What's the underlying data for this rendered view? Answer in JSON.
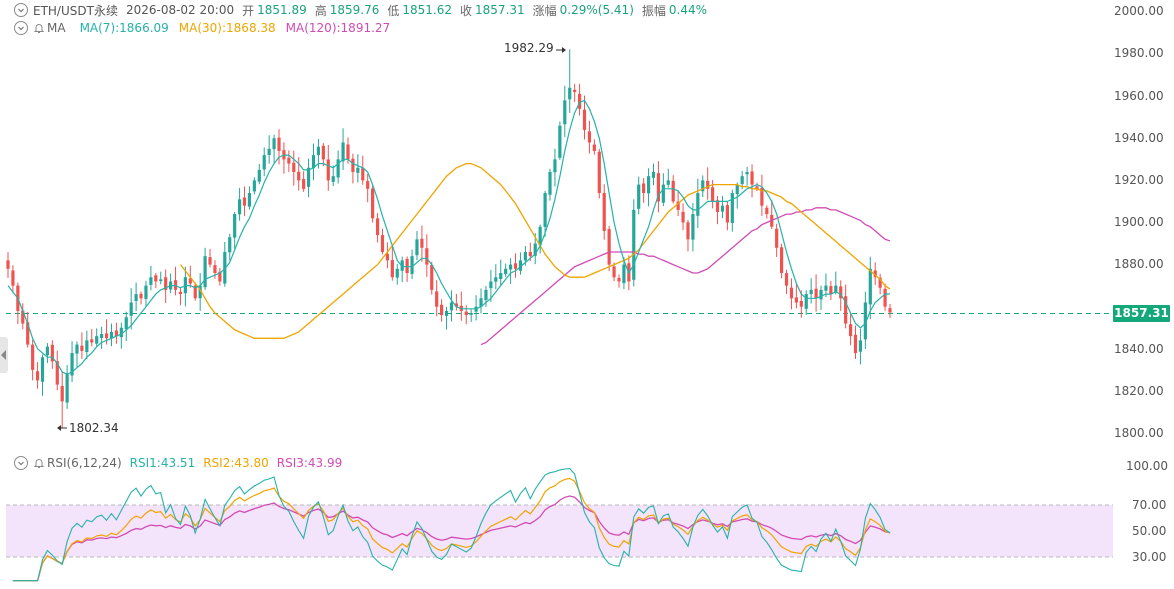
{
  "header": {
    "symbol": "ETH/USDT永续",
    "datetime": "2026-08-02 20:00",
    "open_label": "开",
    "open": "1851.89",
    "high_label": "高",
    "high": "1859.76",
    "low_label": "低",
    "low": "1851.62",
    "close_label": "收",
    "close": "1857.31",
    "change_label": "涨幅",
    "change": "0.29%(5.41)",
    "amplitude_label": "振幅",
    "amplitude": "0.44%"
  },
  "ma": {
    "label": "MA",
    "ma7": "MA(7):1866.09",
    "ma30": "MA(30):1868.38",
    "ma120": "MA(120):1891.27"
  },
  "rsi": {
    "label": "RSI(6,12,24)",
    "rsi1": "RSI1:43.51",
    "rsi2": "RSI2:43.80",
    "rsi3": "RSI3:43.99"
  },
  "price_axis": [
    "2000.00",
    "1980.00",
    "1960.00",
    "1940.00",
    "1920.00",
    "1900.00",
    "1880.00",
    "1860.00",
    "1840.00",
    "1820.00",
    "1800.00"
  ],
  "rsi_axis": [
    "100.00",
    "70.00",
    "50.00",
    "30.00"
  ],
  "current_price": "1857.31",
  "annotations": {
    "high": "1982.29",
    "low": "1802.34"
  },
  "icons": {
    "chevron": "chevron-down-icon",
    "bell": "bell-icon",
    "handle": "chevron-left-icon"
  },
  "colors": {
    "up": "#26a69a",
    "down": "#ef5350",
    "ma7": "#26b2a8",
    "ma30": "#f0a400",
    "ma120": "#d24bb4",
    "rsi_band": "#f3e3fb",
    "price_tag": "#13a87a"
  },
  "chart_data": {
    "type": "candlestick",
    "price_ylim": [
      1800,
      2000
    ],
    "rsi_ylim": [
      0,
      100
    ],
    "rsi_levels": [
      70,
      50,
      30
    ],
    "last_close": 1857.31,
    "max_high": 1982.29,
    "min_low": 1802.34,
    "closes": [
      1878,
      1870,
      1858,
      1852,
      1842,
      1830,
      1825,
      1836,
      1841,
      1834,
      1823,
      1815,
      1828,
      1838,
      1842,
      1839,
      1844,
      1843,
      1846,
      1847,
      1845,
      1848,
      1846,
      1850,
      1855,
      1862,
      1866,
      1864,
      1870,
      1874,
      1872,
      1873,
      1868,
      1872,
      1868,
      1866,
      1874,
      1871,
      1864,
      1870,
      1884,
      1880,
      1876,
      1872,
      1886,
      1893,
      1904,
      1911,
      1908,
      1914,
      1920,
      1925,
      1932,
      1935,
      1940,
      1934,
      1930,
      1928,
      1924,
      1920,
      1916,
      1926,
      1932,
      1936,
      1930,
      1920,
      1922,
      1930,
      1938,
      1930,
      1924,
      1926,
      1920,
      1916,
      1902,
      1894,
      1886,
      1882,
      1874,
      1878,
      1882,
      1876,
      1884,
      1892,
      1888,
      1880,
      1868,
      1860,
      1856,
      1858,
      1862,
      1860,
      1858,
      1856,
      1857,
      1860,
      1864,
      1868,
      1872,
      1874,
      1876,
      1878,
      1880,
      1878,
      1882,
      1886,
      1884,
      1890,
      1898,
      1914,
      1924,
      1930,
      1946,
      1958,
      1964,
      1962,
      1954,
      1944,
      1938,
      1934,
      1914,
      1896,
      1880,
      1874,
      1872,
      1880,
      1872,
      1906,
      1918,
      1914,
      1922,
      1924,
      1910,
      1918,
      1920,
      1910,
      1906,
      1900,
      1892,
      1904,
      1914,
      1920,
      1916,
      1910,
      1905,
      1908,
      1900,
      1914,
      1918,
      1922,
      1924,
      1918,
      1916,
      1908,
      1904,
      1898,
      1888,
      1876,
      1870,
      1864,
      1862,
      1860,
      1866,
      1868,
      1864,
      1868,
      1870,
      1866,
      1870,
      1864,
      1852,
      1846,
      1838,
      1844,
      1862,
      1878,
      1874,
      1869,
      1860,
      1857.31
    ],
    "ma7": [
      1870,
      1867,
      1864,
      1858,
      1852,
      1845,
      1840,
      1838,
      1836,
      1836,
      1833,
      1829,
      1828,
      1829,
      1831,
      1833,
      1836,
      1838,
      1841,
      1843,
      1844,
      1845,
      1846,
      1847,
      1849,
      1851,
      1854,
      1857,
      1860,
      1863,
      1866,
      1868,
      1869,
      1870,
      1870,
      1869,
      1870,
      1870,
      1869,
      1870,
      1873,
      1874,
      1875,
      1876,
      1878,
      1881,
      1887,
      1893,
      1898,
      1902,
      1908,
      1913,
      1919,
      1924,
      1928,
      1931,
      1932,
      1932,
      1930,
      1928,
      1925,
      1925,
      1926,
      1928,
      1928,
      1927,
      1926,
      1928,
      1930,
      1930,
      1928,
      1927,
      1926,
      1924,
      1918,
      1911,
      1903,
      1896,
      1889,
      1882,
      1879,
      1879,
      1879,
      1881,
      1883,
      1883,
      1880,
      1876,
      1871,
      1867,
      1863,
      1860,
      1859,
      1859,
      1859,
      1859,
      1860,
      1862,
      1864,
      1867,
      1870,
      1873,
      1876,
      1877,
      1879,
      1881,
      1883,
      1885,
      1889,
      1895,
      1902,
      1911,
      1922,
      1934,
      1944,
      1952,
      1957,
      1958,
      1954,
      1948,
      1940,
      1928,
      1914,
      1900,
      1890,
      1882,
      1876,
      1880,
      1886,
      1892,
      1898,
      1906,
      1913,
      1916,
      1916,
      1916,
      1915,
      1912,
      1908,
      1906,
      1906,
      1908,
      1910,
      1910,
      1910,
      1910,
      1910,
      1911,
      1912,
      1914,
      1916,
      1917,
      1918,
      1917,
      1914,
      1910,
      1904,
      1895,
      1886,
      1878,
      1871,
      1866,
      1864,
      1864,
      1864,
      1865,
      1866,
      1866,
      1867,
      1866,
      1862,
      1857,
      1852,
      1850,
      1852,
      1858,
      1862,
      1864,
      1866,
      1866.09
    ],
    "ma30": [
      1880,
      1877,
      1874,
      1871,
      1868,
      1864,
      1860,
      1857,
      1855,
      1853,
      1851,
      1849,
      1848,
      1847,
      1846,
      1845,
      1845,
      1845,
      1845,
      1845,
      1845,
      1845,
      1846,
      1847,
      1848,
      1850,
      1852,
      1854,
      1856,
      1858,
      1860,
      1862,
      1864,
      1866,
      1868,
      1870,
      1872,
      1874,
      1876,
      1878,
      1880,
      1883,
      1886,
      1889,
      1892,
      1895,
      1898,
      1901,
      1904,
      1907,
      1910,
      1913,
      1916,
      1919,
      1922,
      1924,
      1926,
      1927,
      1928,
      1928,
      1927,
      1926,
      1924,
      1922,
      1920,
      1918,
      1915,
      1912,
      1909,
      1905,
      1901,
      1897,
      1893,
      1889,
      1885,
      1882,
      1879,
      1877,
      1875,
      1874,
      1874,
      1874,
      1874,
      1875,
      1876,
      1877,
      1878,
      1879,
      1880,
      1881,
      1882,
      1883,
      1885,
      1887,
      1890,
      1893,
      1896,
      1899,
      1902,
      1905,
      1907,
      1909,
      1911,
      1913,
      1914,
      1915,
      1916,
      1917,
      1918,
      1918,
      1918,
      1918,
      1918,
      1918,
      1917,
      1917,
      1916,
      1916,
      1915,
      1915,
      1914,
      1913,
      1912,
      1910,
      1909,
      1907,
      1905,
      1903,
      1901,
      1899,
      1897,
      1895,
      1893,
      1891,
      1889,
      1887,
      1885,
      1883,
      1881,
      1879,
      1877,
      1875,
      1873,
      1870,
      1868.38
    ],
    "ma120": [
      1842,
      1843,
      1845,
      1847,
      1849,
      1851,
      1853,
      1855,
      1857,
      1859,
      1861,
      1863,
      1865,
      1867,
      1869,
      1871,
      1873,
      1875,
      1877,
      1879,
      1880,
      1881,
      1882,
      1883,
      1884,
      1885,
      1886,
      1886,
      1886,
      1886,
      1886,
      1886,
      1885,
      1885,
      1884,
      1884,
      1883,
      1882,
      1881,
      1880,
      1879,
      1878,
      1877,
      1876,
      1876,
      1877,
      1878,
      1880,
      1882,
      1884,
      1886,
      1888,
      1890,
      1892,
      1894,
      1896,
      1897,
      1899,
      1900,
      1901,
      1902,
      1903,
      1904,
      1904,
      1905,
      1905,
      1906,
      1906,
      1907,
      1907,
      1907,
      1906,
      1906,
      1905,
      1904,
      1903,
      1902,
      1901,
      1899,
      1898,
      1896,
      1894,
      1892,
      1891.27
    ]
  }
}
